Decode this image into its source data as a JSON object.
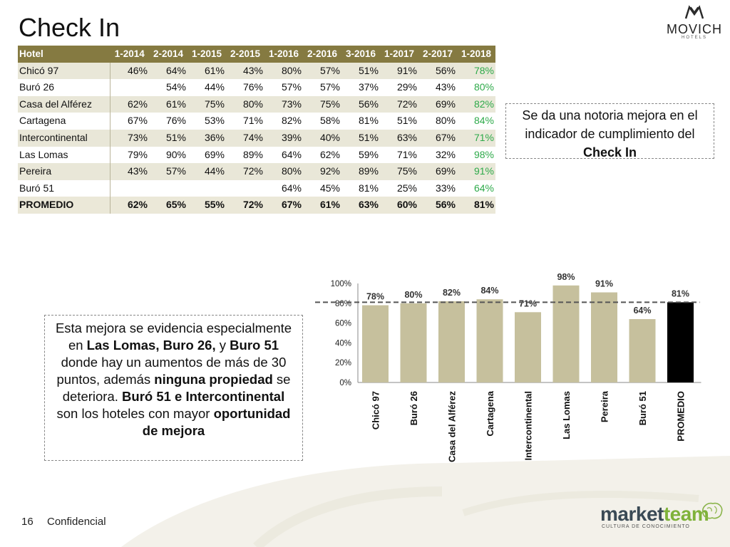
{
  "title": "Check In",
  "logo_top": {
    "brand": "MOVICH",
    "sub": "HOTELS"
  },
  "table": {
    "headers": [
      "Hotel",
      "1-2014",
      "2-2014",
      "1-2015",
      "2-2015",
      "1-2016",
      "2-2016",
      "3-2016",
      "1-2017",
      "2-2017",
      "1-2018"
    ],
    "rows": [
      {
        "name": "Chicó 97",
        "values": [
          "46%",
          "64%",
          "61%",
          "43%",
          "80%",
          "57%",
          "51%",
          "91%",
          "56%",
          "78%"
        ]
      },
      {
        "name": "Buró 26",
        "values": [
          "",
          "54%",
          "44%",
          "76%",
          "57%",
          "57%",
          "37%",
          "29%",
          "43%",
          "80%"
        ]
      },
      {
        "name": "Casa del Alférez",
        "values": [
          "62%",
          "61%",
          "75%",
          "80%",
          "73%",
          "75%",
          "56%",
          "72%",
          "69%",
          "82%"
        ]
      },
      {
        "name": "Cartagena",
        "values": [
          "67%",
          "76%",
          "53%",
          "71%",
          "82%",
          "58%",
          "81%",
          "51%",
          "80%",
          "84%"
        ]
      },
      {
        "name": "Intercontinental",
        "values": [
          "73%",
          "51%",
          "36%",
          "74%",
          "39%",
          "40%",
          "51%",
          "63%",
          "67%",
          "71%"
        ]
      },
      {
        "name": "Las Lomas",
        "values": [
          "79%",
          "90%",
          "69%",
          "89%",
          "64%",
          "62%",
          "59%",
          "71%",
          "32%",
          "98%"
        ]
      },
      {
        "name": "Pereira",
        "values": [
          "43%",
          "57%",
          "44%",
          "72%",
          "80%",
          "92%",
          "89%",
          "75%",
          "69%",
          "91%"
        ]
      },
      {
        "name": "Buró 51",
        "values": [
          "",
          "",
          "",
          "",
          "64%",
          "45%",
          "81%",
          "25%",
          "33%",
          "64%"
        ]
      }
    ],
    "average": {
      "name": "PROMEDIO",
      "values": [
        "62%",
        "65%",
        "55%",
        "72%",
        "67%",
        "61%",
        "63%",
        "60%",
        "56%",
        "81%"
      ]
    }
  },
  "callout_right": [
    {
      "text": "Se da una notoria mejora en el indicador de cumplimiento del ",
      "bold": false
    },
    {
      "text": "Check In",
      "bold": true
    }
  ],
  "callout_left": [
    {
      "text": "Esta mejora se evidencia especialmente en ",
      "bold": false
    },
    {
      "text": "Las Lomas, Buro 26,",
      "bold": true
    },
    {
      "text": " y ",
      "bold": false
    },
    {
      "text": "Buro 51",
      "bold": true
    },
    {
      "text": " donde hay un aumentos de más de 30 puntos, además ",
      "bold": false
    },
    {
      "text": "ninguna propiedad",
      "bold": true
    },
    {
      "text": " se deteriora. ",
      "bold": false
    },
    {
      "text": "Buró 51 e Intercontinental",
      "bold": true
    },
    {
      "text": " son los hoteles con mayor ",
      "bold": false
    },
    {
      "text": "oportunidad de mejora",
      "bold": true
    }
  ],
  "chart_data": {
    "type": "bar",
    "categories": [
      "Chicó 97",
      "Buró 26",
      "Casa del Alférez",
      "Cartagena",
      "Intercontinental",
      "Las Lomas",
      "Pereira",
      "Buró 51",
      "PROMEDIO"
    ],
    "values": [
      78,
      80,
      82,
      84,
      71,
      98,
      91,
      64,
      81
    ],
    "labels": [
      "78%",
      "80%",
      "82%",
      "84%",
      "71%",
      "98%",
      "91%",
      "64%",
      "81%"
    ],
    "yticks": [
      "0%",
      "20%",
      "40%",
      "60%",
      "80%",
      "100%"
    ],
    "ylim": [
      0,
      100
    ],
    "reference_line": 81,
    "colors": {
      "bar": "#c6c09d",
      "average_bar": "#000000",
      "reference": "#555555"
    }
  },
  "footer": {
    "page_number": "16",
    "label": "Confidencial"
  },
  "logo_bottom": {
    "part1": "market",
    "part2": "team",
    "tagline": "CULTURA DE CONOCIMIENTO"
  }
}
